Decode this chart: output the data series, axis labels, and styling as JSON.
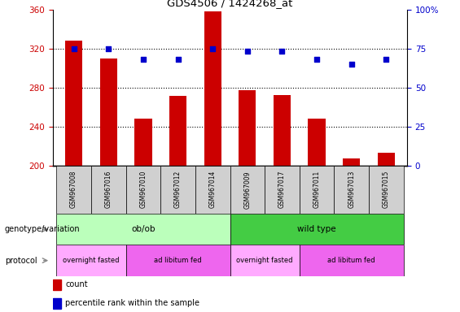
{
  "title": "GDS4506 / 1424268_at",
  "samples": [
    "GSM967008",
    "GSM967016",
    "GSM967010",
    "GSM967012",
    "GSM967014",
    "GSM967009",
    "GSM967017",
    "GSM967011",
    "GSM967013",
    "GSM967015"
  ],
  "counts": [
    328,
    310,
    248,
    271,
    358,
    277,
    272,
    248,
    207,
    213
  ],
  "percentiles": [
    75,
    75,
    68,
    68,
    75,
    73,
    73,
    68,
    65,
    68
  ],
  "ylim_left": [
    200,
    360
  ],
  "ylim_right": [
    0,
    100
  ],
  "yticks_left": [
    200,
    240,
    280,
    320,
    360
  ],
  "yticks_right": [
    0,
    25,
    50,
    75,
    100
  ],
  "bar_color": "#cc0000",
  "dot_color": "#0000cc",
  "groups": [
    {
      "label": "ob/ob",
      "start": 0,
      "end": 5,
      "color": "#bbffbb"
    },
    {
      "label": "wild type",
      "start": 5,
      "end": 10,
      "color": "#44cc44"
    }
  ],
  "protocols": [
    {
      "label": "overnight fasted",
      "start": 0,
      "end": 2,
      "color": "#ffaaff"
    },
    {
      "label": "ad libitum fed",
      "start": 2,
      "end": 5,
      "color": "#ee66ee"
    },
    {
      "label": "overnight fasted",
      "start": 5,
      "end": 7,
      "color": "#ffaaff"
    },
    {
      "label": "ad libitum fed",
      "start": 7,
      "end": 10,
      "color": "#ee66ee"
    }
  ],
  "tick_label_color_left": "#cc0000",
  "tick_label_color_right": "#0000cc",
  "genotype_label": "genotype/variation",
  "protocol_label": "protocol",
  "bar_width": 0.5,
  "sample_box_color": "#d0d0d0",
  "grid_yticks": [
    240,
    280,
    320
  ],
  "ytick_right_labels": [
    "0",
    "25",
    "50",
    "75",
    "100%"
  ]
}
